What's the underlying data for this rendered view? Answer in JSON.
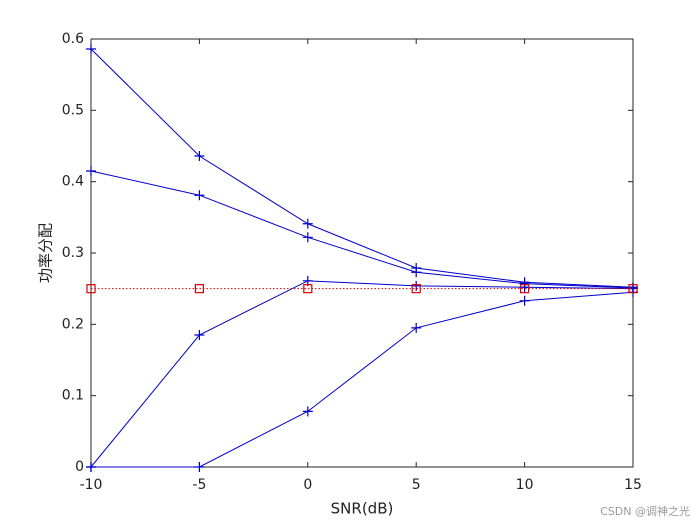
{
  "chart_data": {
    "type": "line",
    "x": [
      -10,
      -5,
      0,
      5,
      10,
      15
    ],
    "series": [
      {
        "color": "#0000cc",
        "marker": "plus",
        "dash": "solid",
        "values": [
          0.586,
          0.436,
          0.341,
          0.279,
          0.259,
          0.252
        ]
      },
      {
        "color": "#0000cc",
        "marker": "plus",
        "dash": "solid",
        "values": [
          0.415,
          0.381,
          0.322,
          0.273,
          0.257,
          0.251
        ]
      },
      {
        "color": "#0000cc",
        "marker": "plus",
        "dash": "solid",
        "values": [
          0,
          0.185,
          0.261,
          0.254,
          0.252,
          0.25
        ]
      },
      {
        "color": "#0000cc",
        "marker": "plus",
        "dash": "solid",
        "values": [
          0,
          0,
          0.078,
          0.195,
          0.233,
          0.245
        ]
      },
      {
        "color": "#dd0000",
        "marker": "square",
        "dash": "dotted",
        "values": [
          0.25,
          0.25,
          0.25,
          0.25,
          0.25,
          0.25
        ]
      }
    ],
    "xlabel": "SNR(dB)",
    "ylabel": "功率分配",
    "xlim": [
      -10,
      15
    ],
    "xticks": [
      -10,
      -5,
      0,
      5,
      10,
      15
    ],
    "ylim": [
      0,
      0.6
    ],
    "yticks": [
      0,
      0.1,
      0.2,
      0.3,
      0.4,
      0.5,
      0.6
    ],
    "grid": false,
    "watermark": "CSDN @调神之光"
  }
}
